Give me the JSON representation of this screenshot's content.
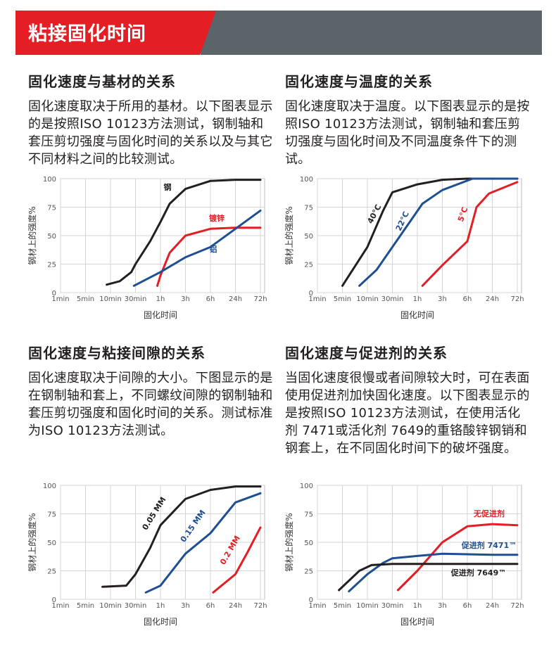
{
  "header": {
    "title": "粘接固化时间"
  },
  "sections": [
    {
      "title": "固化速度与基材的关系",
      "text": "固化速度取决于所用的基材。以下图表显示的是按照ISO 10123方法测试，钢制轴和套压剪切强度与固化时间的关系以及与其它不同材料之间的比较测试。"
    },
    {
      "title": "固化速度与温度的关系",
      "text": "固化速度取决于温度。以下图表显示的是按照ISO 10123方法测试，钢制轴和套压剪切强度与固化时间及不同温度条件下的测试。"
    },
    {
      "title": "固化速度与粘接间隙的关系",
      "text": "固化速度取决于间隙的大小。下图显示的是在钢制轴和套上，不同螺纹间隙的钢制轴和套压剪切强度和固化时间的关系。测试标准为ISO 10123方法测试。"
    },
    {
      "title": "固化速度与促进剂的关系",
      "text": "当固化速度很慢或者间隙较大时，可在表面使用促进剂加快固化速度。以下图表显示的是按照ISO 10123方法测试，在使用活化剂 7471或活化剂 7649的重铬酸锌钢销和钢套上，在不同固化时间下的破坏强度。"
    }
  ],
  "chart_data": [
    {
      "type": "line",
      "x_label": "固化时间",
      "y_label": "钢材上的强度%",
      "xscale": "log",
      "xlim": [
        1,
        4320
      ],
      "xticks": [
        {
          "value": 1,
          "label": "1min"
        },
        {
          "value": 5,
          "label": "5min"
        },
        {
          "value": 10,
          "label": "10min"
        },
        {
          "value": 30,
          "label": "30min"
        },
        {
          "value": 60,
          "label": "1h"
        },
        {
          "value": 180,
          "label": "3h"
        },
        {
          "value": 360,
          "label": "6h"
        },
        {
          "value": 1440,
          "label": "24h"
        },
        {
          "value": 4320,
          "label": "72h"
        }
      ],
      "ylim": [
        0,
        100
      ],
      "yticks": [
        0,
        25,
        50,
        75,
        100
      ],
      "grid": true,
      "series": [
        {
          "name": "钢",
          "color": "#231f20",
          "x": [
            9,
            15,
            25,
            30,
            45,
            60,
            90,
            180,
            360,
            1440,
            4320
          ],
          "values": [
            7,
            10,
            18,
            25,
            45,
            62,
            78,
            91,
            98,
            99,
            99
          ]
        },
        {
          "name": "镀锌",
          "color": "#e31e24",
          "x": [
            55,
            60,
            90,
            180,
            360,
            1440,
            4320
          ],
          "values": [
            6,
            15,
            35,
            50,
            56,
            57,
            57
          ]
        },
        {
          "name": "铝",
          "color": "#1d4f91",
          "x": [
            28,
            60,
            180,
            360,
            1440,
            4320
          ],
          "values": [
            6,
            18,
            31,
            40,
            56,
            72
          ]
        }
      ]
    },
    {
      "type": "line",
      "x_label": "固化时间",
      "y_label": "钢材上的强度%",
      "xscale": "log",
      "xlim": [
        1,
        4320
      ],
      "xticks": [
        {
          "value": 1,
          "label": "1min"
        },
        {
          "value": 5,
          "label": "5min"
        },
        {
          "value": 10,
          "label": "10min"
        },
        {
          "value": 30,
          "label": "30min"
        },
        {
          "value": 60,
          "label": "1h"
        },
        {
          "value": 180,
          "label": "3h"
        },
        {
          "value": 360,
          "label": "6h"
        },
        {
          "value": 1440,
          "label": "24h"
        },
        {
          "value": 4320,
          "label": "72h"
        }
      ],
      "ylim": [
        0,
        100
      ],
      "yticks": [
        0,
        25,
        50,
        75,
        100
      ],
      "grid": true,
      "series": [
        {
          "name": "40°C",
          "color": "#231f20",
          "x": [
            5,
            10,
            20,
            30,
            60,
            180,
            360,
            4320
          ],
          "values": [
            6,
            40,
            72,
            88,
            95,
            99,
            100,
            100
          ]
        },
        {
          "name": "22°C",
          "color": "#1d4f91",
          "x": [
            8,
            15,
            75,
            180,
            480,
            4320
          ],
          "values": [
            6,
            20,
            78,
            90,
            100,
            100
          ]
        },
        {
          "name": "5°C",
          "color": "#e31e24",
          "x": [
            75,
            180,
            360,
            600,
            1200,
            4320
          ],
          "values": [
            6,
            24,
            45,
            75,
            87,
            97
          ]
        }
      ]
    },
    {
      "type": "line",
      "x_label": "固化时间",
      "y_label": "钢材上的强度%",
      "xscale": "log",
      "xlim": [
        1,
        4320
      ],
      "xticks": [
        {
          "value": 1,
          "label": "1min"
        },
        {
          "value": 5,
          "label": "5min"
        },
        {
          "value": 10,
          "label": "10min"
        },
        {
          "value": 30,
          "label": "30min"
        },
        {
          "value": 60,
          "label": "1h"
        },
        {
          "value": 180,
          "label": "3h"
        },
        {
          "value": 360,
          "label": "6h"
        },
        {
          "value": 1440,
          "label": "24h"
        },
        {
          "value": 4320,
          "label": "72h"
        }
      ],
      "ylim": [
        0,
        100
      ],
      "yticks": [
        0,
        25,
        50,
        75,
        100
      ],
      "grid": true,
      "series": [
        {
          "name": "0.05 MM",
          "color": "#231f20",
          "x": [
            8,
            20,
            30,
            45,
            60,
            180,
            360,
            1440,
            4320
          ],
          "values": [
            11,
            12,
            22,
            45,
            65,
            88,
            96,
            99,
            99
          ]
        },
        {
          "name": "0.15 MM",
          "color": "#1d4f91",
          "x": [
            40,
            60,
            180,
            360,
            1440,
            4320
          ],
          "values": [
            6,
            12,
            40,
            58,
            85,
            93
          ]
        },
        {
          "name": "0.2 MM",
          "color": "#e31e24",
          "x": [
            420,
            1440,
            2500,
            4320
          ],
          "values": [
            6,
            22,
            42,
            63
          ]
        }
      ]
    },
    {
      "type": "line",
      "x_label": "固化时间",
      "y_label": "钢材上的强度%",
      "xscale": "log",
      "xlim": [
        1,
        4320
      ],
      "xticks": [
        {
          "value": 1,
          "label": "1min"
        },
        {
          "value": 5,
          "label": "5min"
        },
        {
          "value": 10,
          "label": "10min"
        },
        {
          "value": 30,
          "label": "30min"
        },
        {
          "value": 60,
          "label": "1h"
        },
        {
          "value": 180,
          "label": "3h"
        },
        {
          "value": 360,
          "label": "6h"
        },
        {
          "value": 1440,
          "label": "24h"
        },
        {
          "value": 4320,
          "label": "72h"
        }
      ],
      "ylim": [
        0,
        100
      ],
      "yticks": [
        0,
        25,
        50,
        75,
        100
      ],
      "grid": true,
      "series": [
        {
          "name": "无促进剂",
          "color": "#e31e24",
          "x": [
            35,
            60,
            180,
            360,
            1440,
            4320
          ],
          "values": [
            8,
            25,
            50,
            64,
            66,
            65
          ]
        },
        {
          "name": "促进剂 7471™",
          "color": "#1d4f91",
          "x": [
            6,
            10,
            20,
            30,
            60,
            180,
            1440,
            4320
          ],
          "values": [
            7,
            22,
            32,
            36,
            38,
            40,
            39,
            39
          ]
        },
        {
          "name": "促进剂 7649™",
          "color": "#231f20",
          "x": [
            4,
            8,
            12,
            30,
            4320
          ],
          "values": [
            8,
            25,
            30,
            31,
            31
          ]
        }
      ]
    }
  ]
}
